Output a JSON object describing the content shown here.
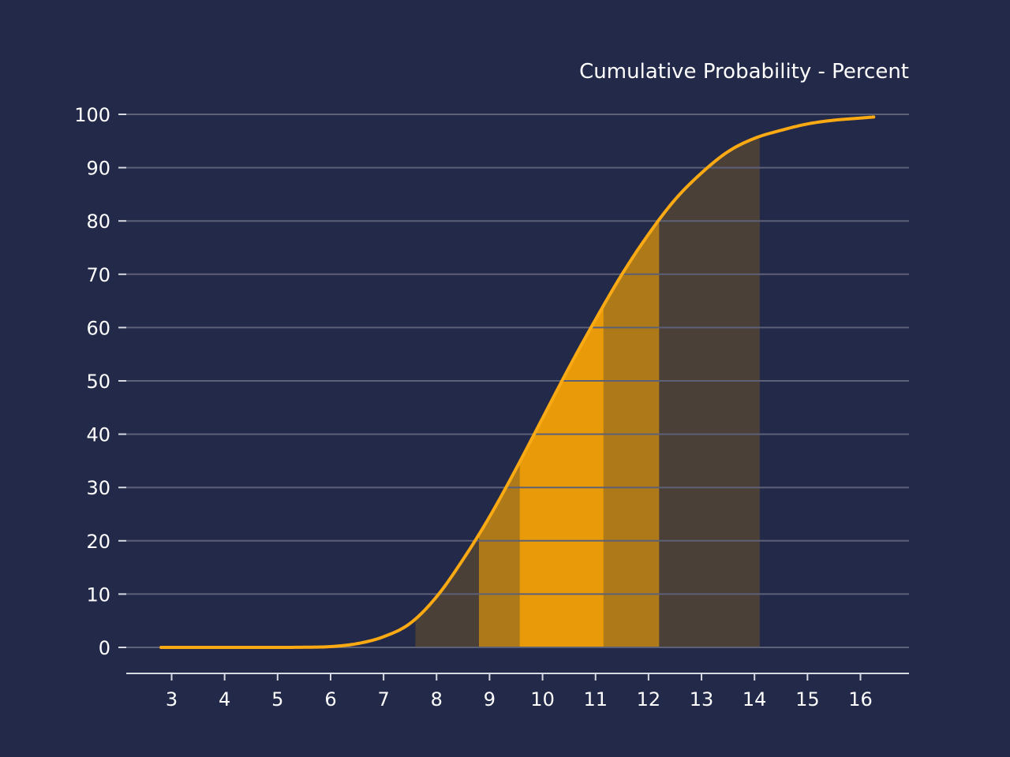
{
  "colors": {
    "background": "#232948",
    "grid": "#5c6177",
    "axis": "#d7d9e2",
    "text": "#ffffff",
    "curve": "#fbaa13",
    "band_outer": "#4b4038",
    "band_middle": "#ad7919",
    "band_inner": "#e89a09"
  },
  "chart_data": {
    "type": "area",
    "title": "Cumulative Probability - Percent",
    "xlabel": "",
    "ylabel": "",
    "xlim": [
      2.2,
      17.0
    ],
    "ylim": [
      -5,
      100
    ],
    "grid": "horizontal",
    "x_ticks": [
      3,
      4,
      5,
      6,
      7,
      8,
      9,
      10,
      11,
      12,
      13,
      14,
      15,
      16
    ],
    "y_ticks": [
      0,
      10,
      20,
      30,
      40,
      50,
      60,
      70,
      80,
      90,
      100
    ],
    "series": [
      {
        "type": "line",
        "x": [
          2.8,
          3.5,
          4.0,
          4.5,
          5.0,
          5.5,
          6.0,
          6.5,
          7.0,
          7.5,
          8.0,
          8.5,
          9.0,
          9.5,
          10.0,
          10.5,
          11.0,
          11.5,
          12.0,
          12.5,
          13.0,
          13.5,
          14.0,
          14.5,
          15.0,
          15.5,
          16.0,
          16.25
        ],
        "y": [
          0.0,
          0.0,
          0.0,
          0.0,
          0.0,
          0.03,
          0.15,
          0.7,
          2.0,
          4.5,
          9.5,
          16.5,
          24.5,
          33.5,
          43.0,
          52.5,
          61.5,
          70.0,
          77.5,
          84.0,
          89.0,
          93.0,
          95.5,
          97.0,
          98.2,
          98.9,
          99.3,
          99.5
        ]
      }
    ],
    "bands": [
      {
        "x_start": 7.6,
        "x_end": 14.1,
        "level": "outer"
      },
      {
        "x_start": 8.8,
        "x_end": 12.2,
        "level": "middle"
      },
      {
        "x_start": 9.57,
        "x_end": 11.15,
        "level": "inner"
      }
    ]
  }
}
